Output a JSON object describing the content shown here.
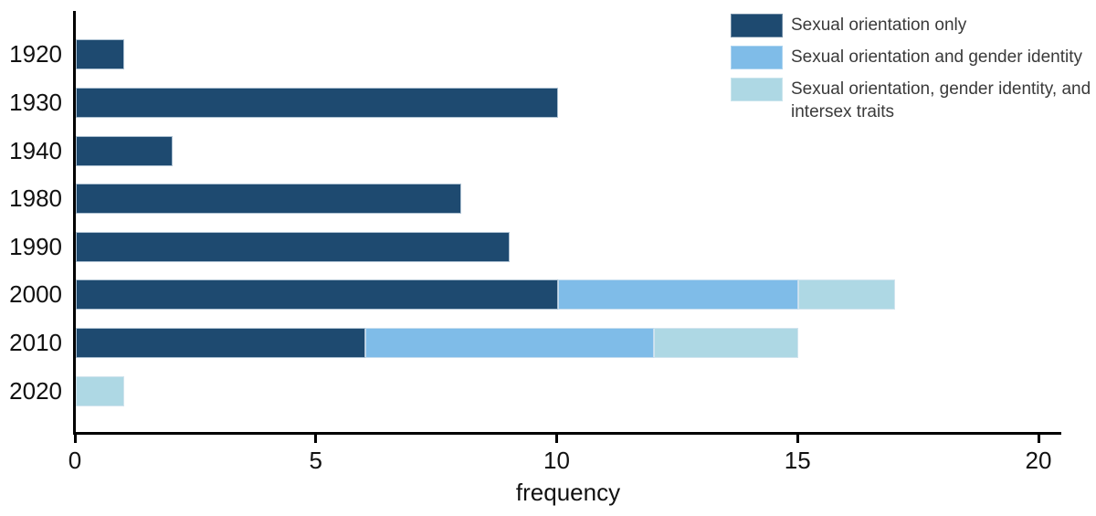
{
  "chart_data": {
    "type": "bar",
    "orientation": "horizontal",
    "stacked": true,
    "title": "",
    "xlabel": "frequency",
    "ylabel": "",
    "xlim": [
      0,
      20
    ],
    "xticks": [
      0,
      5,
      10,
      15,
      20
    ],
    "grid": false,
    "legend_position": "top-right",
    "categories": [
      "1920",
      "1930",
      "1940",
      "1980",
      "1990",
      "2000",
      "2010",
      "2020"
    ],
    "series": [
      {
        "name": "Sexual orientation only",
        "color": "#1e4a70",
        "values": [
          1,
          10,
          2,
          8,
          9,
          10,
          6,
          0
        ]
      },
      {
        "name": "Sexual orientation and gender identity",
        "color": "#7fbce8",
        "values": [
          0,
          0,
          0,
          0,
          0,
          5,
          6,
          0
        ]
      },
      {
        "name": "Sexual orientation, gender identity, and intersex traits",
        "color": "#aed8e4",
        "values": [
          0,
          0,
          0,
          0,
          0,
          2,
          3,
          1
        ]
      }
    ],
    "totals": [
      1,
      10,
      2,
      8,
      9,
      17,
      15,
      1
    ]
  },
  "legend": {
    "items": [
      {
        "label": "Sexual orientation only",
        "color": "#1e4a70"
      },
      {
        "label": "Sexual orientation and gender identity",
        "color": "#7fbce8"
      },
      {
        "label": "Sexual orientation, gender identity, and intersex traits",
        "color": "#aed8e4"
      }
    ]
  },
  "axes": {
    "x_tick_labels": [
      "0",
      "5",
      "10",
      "15",
      "20"
    ],
    "y_tick_labels": [
      "1920",
      "1930",
      "1940",
      "1980",
      "1990",
      "2000",
      "2010",
      "2020"
    ],
    "x_title": "frequency"
  },
  "colors": {
    "axis": "#000000",
    "tick_text": "#111111",
    "legend_text": "#3a3a3a",
    "background": "#ffffff"
  }
}
